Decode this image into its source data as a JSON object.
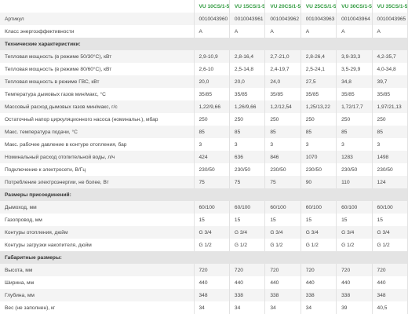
{
  "table": {
    "columns": [
      "VU 10CS/1-5",
      "VU 15CS/1-5",
      "VU 20CS/1-5",
      "VU 25CS/1-5",
      "VU 30CS/1-5",
      "VU 35CS/1-5"
    ],
    "rows": [
      {
        "label": "Артикул",
        "values": [
          "0010043960",
          "0010043961",
          "0010043962",
          "0010043963",
          "0010043964",
          "0010043965"
        ]
      },
      {
        "label": "Класс энергоэффективности",
        "values": [
          "A",
          "A",
          "A",
          "A",
          "A",
          "A"
        ]
      },
      {
        "section": "Технические характеристики:"
      },
      {
        "label": "Тепловая мощность (в режиме 50/30°C), кВт",
        "values": [
          "2,9-10,9",
          "2,8-16,4",
          "2,7-21,0",
          "2,8-26,4",
          "3,9-33,3",
          "4,2-35,7"
        ]
      },
      {
        "label": "Тепловая мощность (в режиме 80/60°C), кВт",
        "values": [
          "2,6-10",
          "2,5-14,8",
          "2,4-19,7",
          "2,5-24,1",
          "3,5-29,9",
          "4,0-34,8"
        ]
      },
      {
        "label": "Тепловая мощность в режиме ГВС, кВт",
        "values": [
          "20,0",
          "20,0",
          "24,0",
          "27,5",
          "34,8",
          "39,7"
        ]
      },
      {
        "label": "Температура дымовых газов мин/макс, °C",
        "values": [
          "35/85",
          "35/85",
          "35/85",
          "35/85",
          "35/85",
          "35/85"
        ]
      },
      {
        "label": "Массовый расход дымовых газов мин/макс, г/с",
        "values": [
          "1,22/9,66",
          "1,26/9,66",
          "1,2/12,54",
          "1,25/13,22",
          "1,72/17,7",
          "1,97/21,13"
        ]
      },
      {
        "label": "Остаточный напор циркуляционного насоса (номинальн.), мбар",
        "values": [
          "250",
          "250",
          "250",
          "250",
          "250",
          "250"
        ]
      },
      {
        "label": "Макс. температура подачи, °C",
        "values": [
          "85",
          "85",
          "85",
          "85",
          "85",
          "85"
        ]
      },
      {
        "label": "Макс. рабочее давление в контуре отопления, бар",
        "values": [
          "3",
          "3",
          "3",
          "3",
          "3",
          "3"
        ]
      },
      {
        "label": "Номинальный расход отопительной воды, л/ч",
        "values": [
          "424",
          "636",
          "846",
          "1070",
          "1283",
          "1498"
        ]
      },
      {
        "label": "Подключение к электросети, В/Гц",
        "values": [
          "230/50",
          "230/50",
          "230/50",
          "230/50",
          "230/50",
          "230/50"
        ]
      },
      {
        "label": "Потребление электроэнергии, не более, Вт",
        "values": [
          "75",
          "75",
          "75",
          "90",
          "110",
          "124"
        ]
      },
      {
        "section": "Размеры присоединений:"
      },
      {
        "label": "Дымоход, мм",
        "values": [
          "60/100",
          "60/100",
          "60/100",
          "60/100",
          "60/100",
          "60/100"
        ]
      },
      {
        "label": "Газопровод, мм",
        "values": [
          "15",
          "15",
          "15",
          "15",
          "15",
          "15"
        ]
      },
      {
        "label": "Контуры отопления, дюйм",
        "values": [
          "G 3/4",
          "G 3/4",
          "G 3/4",
          "G 3/4",
          "G 3/4",
          "G 3/4"
        ]
      },
      {
        "label": "Контуры загрузки накопителя, дюйм",
        "values": [
          "G 1/2",
          "G 1/2",
          "G 1/2",
          "G 1/2",
          "G 1/2",
          "G 1/2"
        ]
      },
      {
        "section": "Габаритные размеры:"
      },
      {
        "label": "Высота, мм",
        "values": [
          "720",
          "720",
          "720",
          "720",
          "720",
          "720"
        ]
      },
      {
        "label": "Ширина, мм",
        "values": [
          "440",
          "440",
          "440",
          "440",
          "440",
          "440"
        ]
      },
      {
        "label": "Глубина, мм",
        "values": [
          "348",
          "338",
          "338",
          "338",
          "338",
          "348"
        ]
      },
      {
        "label": "Вес (не заполнен), кг",
        "values": [
          "34",
          "34",
          "34",
          "34",
          "39",
          "40,5"
        ]
      }
    ]
  }
}
